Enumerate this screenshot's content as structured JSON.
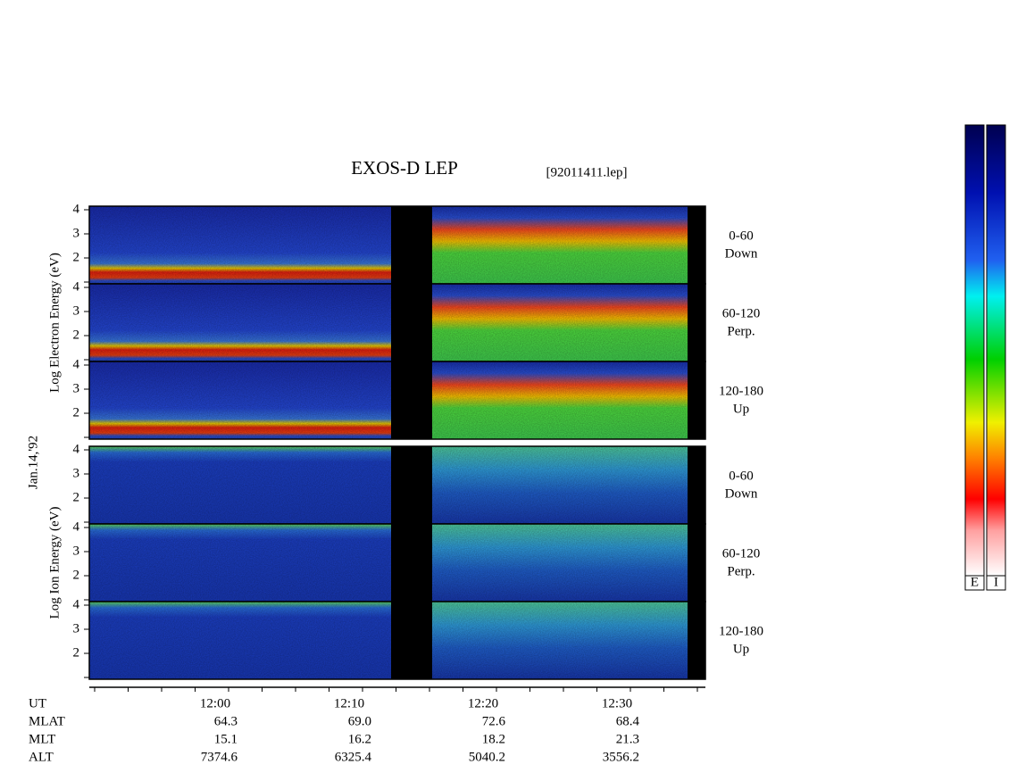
{
  "title": "EXOS-D LEP",
  "file": "[92011411.lep]",
  "date": "Jan.14,'92",
  "groups": [
    {
      "axis_label": "Log Electron Energy (eV)",
      "panels": [
        {
          "angle": "0-60",
          "direction": "Down"
        },
        {
          "angle": "60-120",
          "direction": "Perp."
        },
        {
          "angle": "120-180",
          "direction": "Up"
        }
      ]
    },
    {
      "axis_label": "Log Ion Energy (eV)",
      "panels": [
        {
          "angle": "0-60",
          "direction": "Down"
        },
        {
          "angle": "60-120",
          "direction": "Perp."
        },
        {
          "angle": "120-180",
          "direction": "Up"
        }
      ]
    }
  ],
  "yticks": [
    "2",
    "3",
    "4"
  ],
  "time_ticks": [
    "12:00",
    "12:10",
    "12:20",
    "12:30"
  ],
  "ephemeris": [
    {
      "label": "UT"
    },
    {
      "label": "MLAT",
      "values": [
        "64.3",
        "69.0",
        "72.6",
        "68.4"
      ]
    },
    {
      "label": "MLT",
      "values": [
        "15.1",
        "16.2",
        "18.2",
        "21.3"
      ]
    },
    {
      "label": "ALT",
      "values": [
        "7374.6",
        "6325.4",
        "5040.2",
        "3556.2"
      ]
    }
  ],
  "colorbars": [
    "E",
    "I"
  ]
}
